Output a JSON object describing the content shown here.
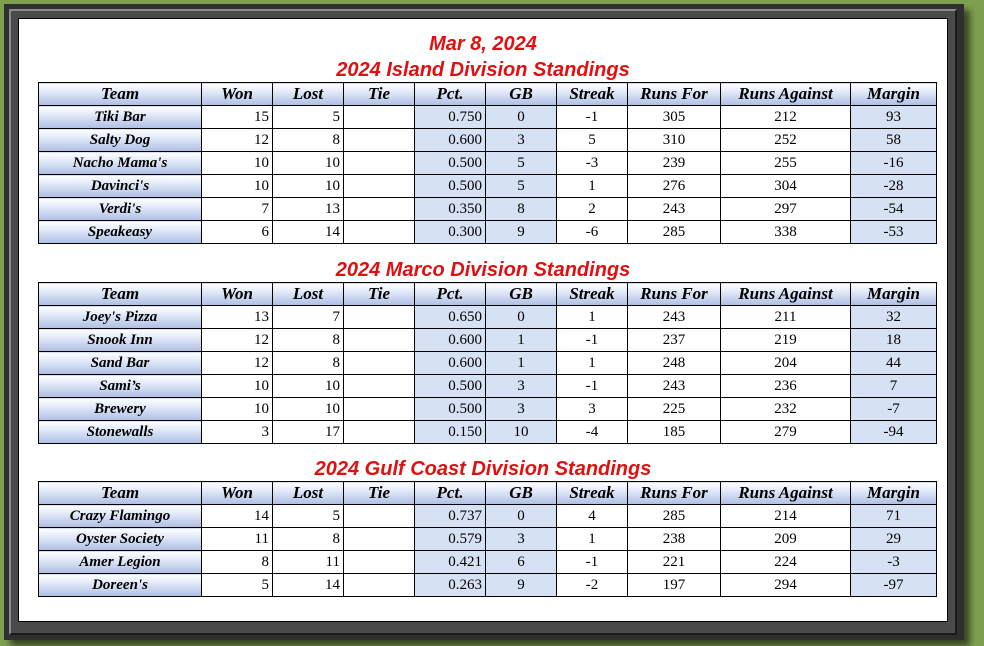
{
  "date": "Mar 8, 2024",
  "columns": [
    "Team",
    "Won",
    "Lost",
    "Tie",
    "Pct.",
    "GB",
    "Streak",
    "Runs For",
    "Runs Against",
    "Margin"
  ],
  "divisions": [
    {
      "title": "2024 Island Division Standings",
      "rows": [
        [
          "Tiki Bar",
          "15",
          "5",
          "",
          "0.750",
          "0",
          "-1",
          "305",
          "212",
          "93"
        ],
        [
          "Salty Dog",
          "12",
          "8",
          "",
          "0.600",
          "3",
          "5",
          "310",
          "252",
          "58"
        ],
        [
          "Nacho Mama's",
          "10",
          "10",
          "",
          "0.500",
          "5",
          "-3",
          "239",
          "255",
          "-16"
        ],
        [
          "Davinci's",
          "10",
          "10",
          "",
          "0.500",
          "5",
          "1",
          "276",
          "304",
          "-28"
        ],
        [
          "Verdi's",
          "7",
          "13",
          "",
          "0.350",
          "8",
          "2",
          "243",
          "297",
          "-54"
        ],
        [
          "Speakeasy",
          "6",
          "14",
          "",
          "0.300",
          "9",
          "-6",
          "285",
          "338",
          "-53"
        ]
      ]
    },
    {
      "title": "2024 Marco Division Standings",
      "rows": [
        [
          "Joey's Pizza",
          "13",
          "7",
          "",
          "0.650",
          "0",
          "1",
          "243",
          "211",
          "32"
        ],
        [
          "Snook Inn",
          "12",
          "8",
          "",
          "0.600",
          "1",
          "-1",
          "237",
          "219",
          "18"
        ],
        [
          "Sand Bar",
          "12",
          "8",
          "",
          "0.600",
          "1",
          "1",
          "248",
          "204",
          "44"
        ],
        [
          "Sami’s",
          "10",
          "10",
          "",
          "0.500",
          "3",
          "-1",
          "243",
          "236",
          "7"
        ],
        [
          "Brewery",
          "10",
          "10",
          "",
          "0.500",
          "3",
          "3",
          "225",
          "232",
          "-7"
        ],
        [
          "Stonewalls",
          "3",
          "17",
          "",
          "0.150",
          "10",
          "-4",
          "185",
          "279",
          "-94"
        ]
      ]
    },
    {
      "title": "2024 Gulf Coast Division Standings",
      "rows": [
        [
          "Crazy Flamingo",
          "14",
          "5",
          "",
          "0.737",
          "0",
          "4",
          "285",
          "214",
          "71"
        ],
        [
          "Oyster Society",
          "11",
          "8",
          "",
          "0.579",
          "3",
          "1",
          "238",
          "209",
          "29"
        ],
        [
          "Amer Legion",
          "8",
          "11",
          "",
          "0.421",
          "6",
          "-1",
          "221",
          "224",
          "-3"
        ],
        [
          "Doreen's",
          "5",
          "14",
          "",
          "0.263",
          "9",
          "-2",
          "197",
          "294",
          "-97"
        ]
      ]
    }
  ],
  "colors": {
    "heading": "#e01010",
    "shade": "#d6e1f3",
    "header_gradient_end": "#aebfe4",
    "background": "#7f9f4f"
  }
}
